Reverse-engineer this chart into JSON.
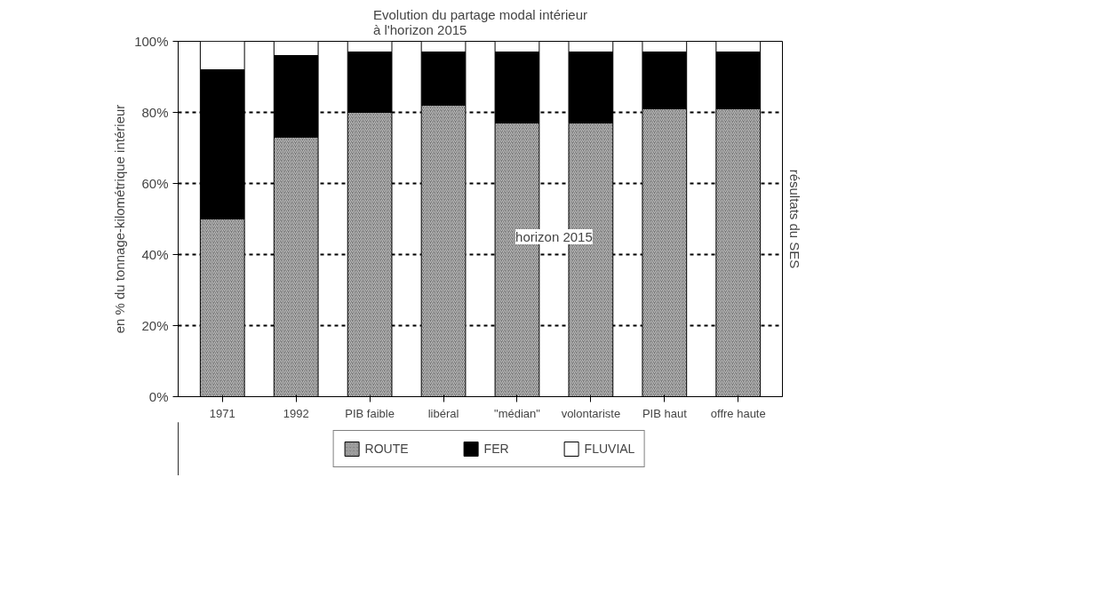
{
  "chart_data": {
    "type": "bar",
    "title": "Evolution du partage modal intérieur\nà l'horizon 2015",
    "ylabel": "en % du tonnage-kilométrique intérieur",
    "categories": [
      "1971",
      "1992",
      "PIB faible",
      "libéral",
      "\"médian\"",
      "volontariste",
      "PIB haut",
      "offre haute"
    ],
    "stacked": true,
    "series": [
      {
        "name": "ROUTE",
        "color": "#6e6e6e",
        "values": [
          50,
          73,
          80,
          82,
          77,
          77,
          81,
          81
        ]
      },
      {
        "name": "FER",
        "color": "#000000",
        "values": [
          42,
          23,
          17,
          15,
          20,
          20,
          16,
          16
        ]
      },
      {
        "name": "FLUVIAL",
        "color": "#ffffff",
        "values": [
          8,
          4,
          3,
          3,
          3,
          3,
          3,
          3
        ]
      }
    ],
    "ylim": [
      0,
      100
    ],
    "yticks": [
      {
        "value": 0,
        "label": "0%"
      },
      {
        "value": 20,
        "label": "20%"
      },
      {
        "value": 40,
        "label": "40%"
      },
      {
        "value": 60,
        "label": "60%"
      },
      {
        "value": 80,
        "label": "80%"
      },
      {
        "value": 100,
        "label": "100%"
      }
    ],
    "grid": "y",
    "legend": "bottom",
    "annotations": [
      "horizon 2015",
      "résultats du SES"
    ]
  }
}
